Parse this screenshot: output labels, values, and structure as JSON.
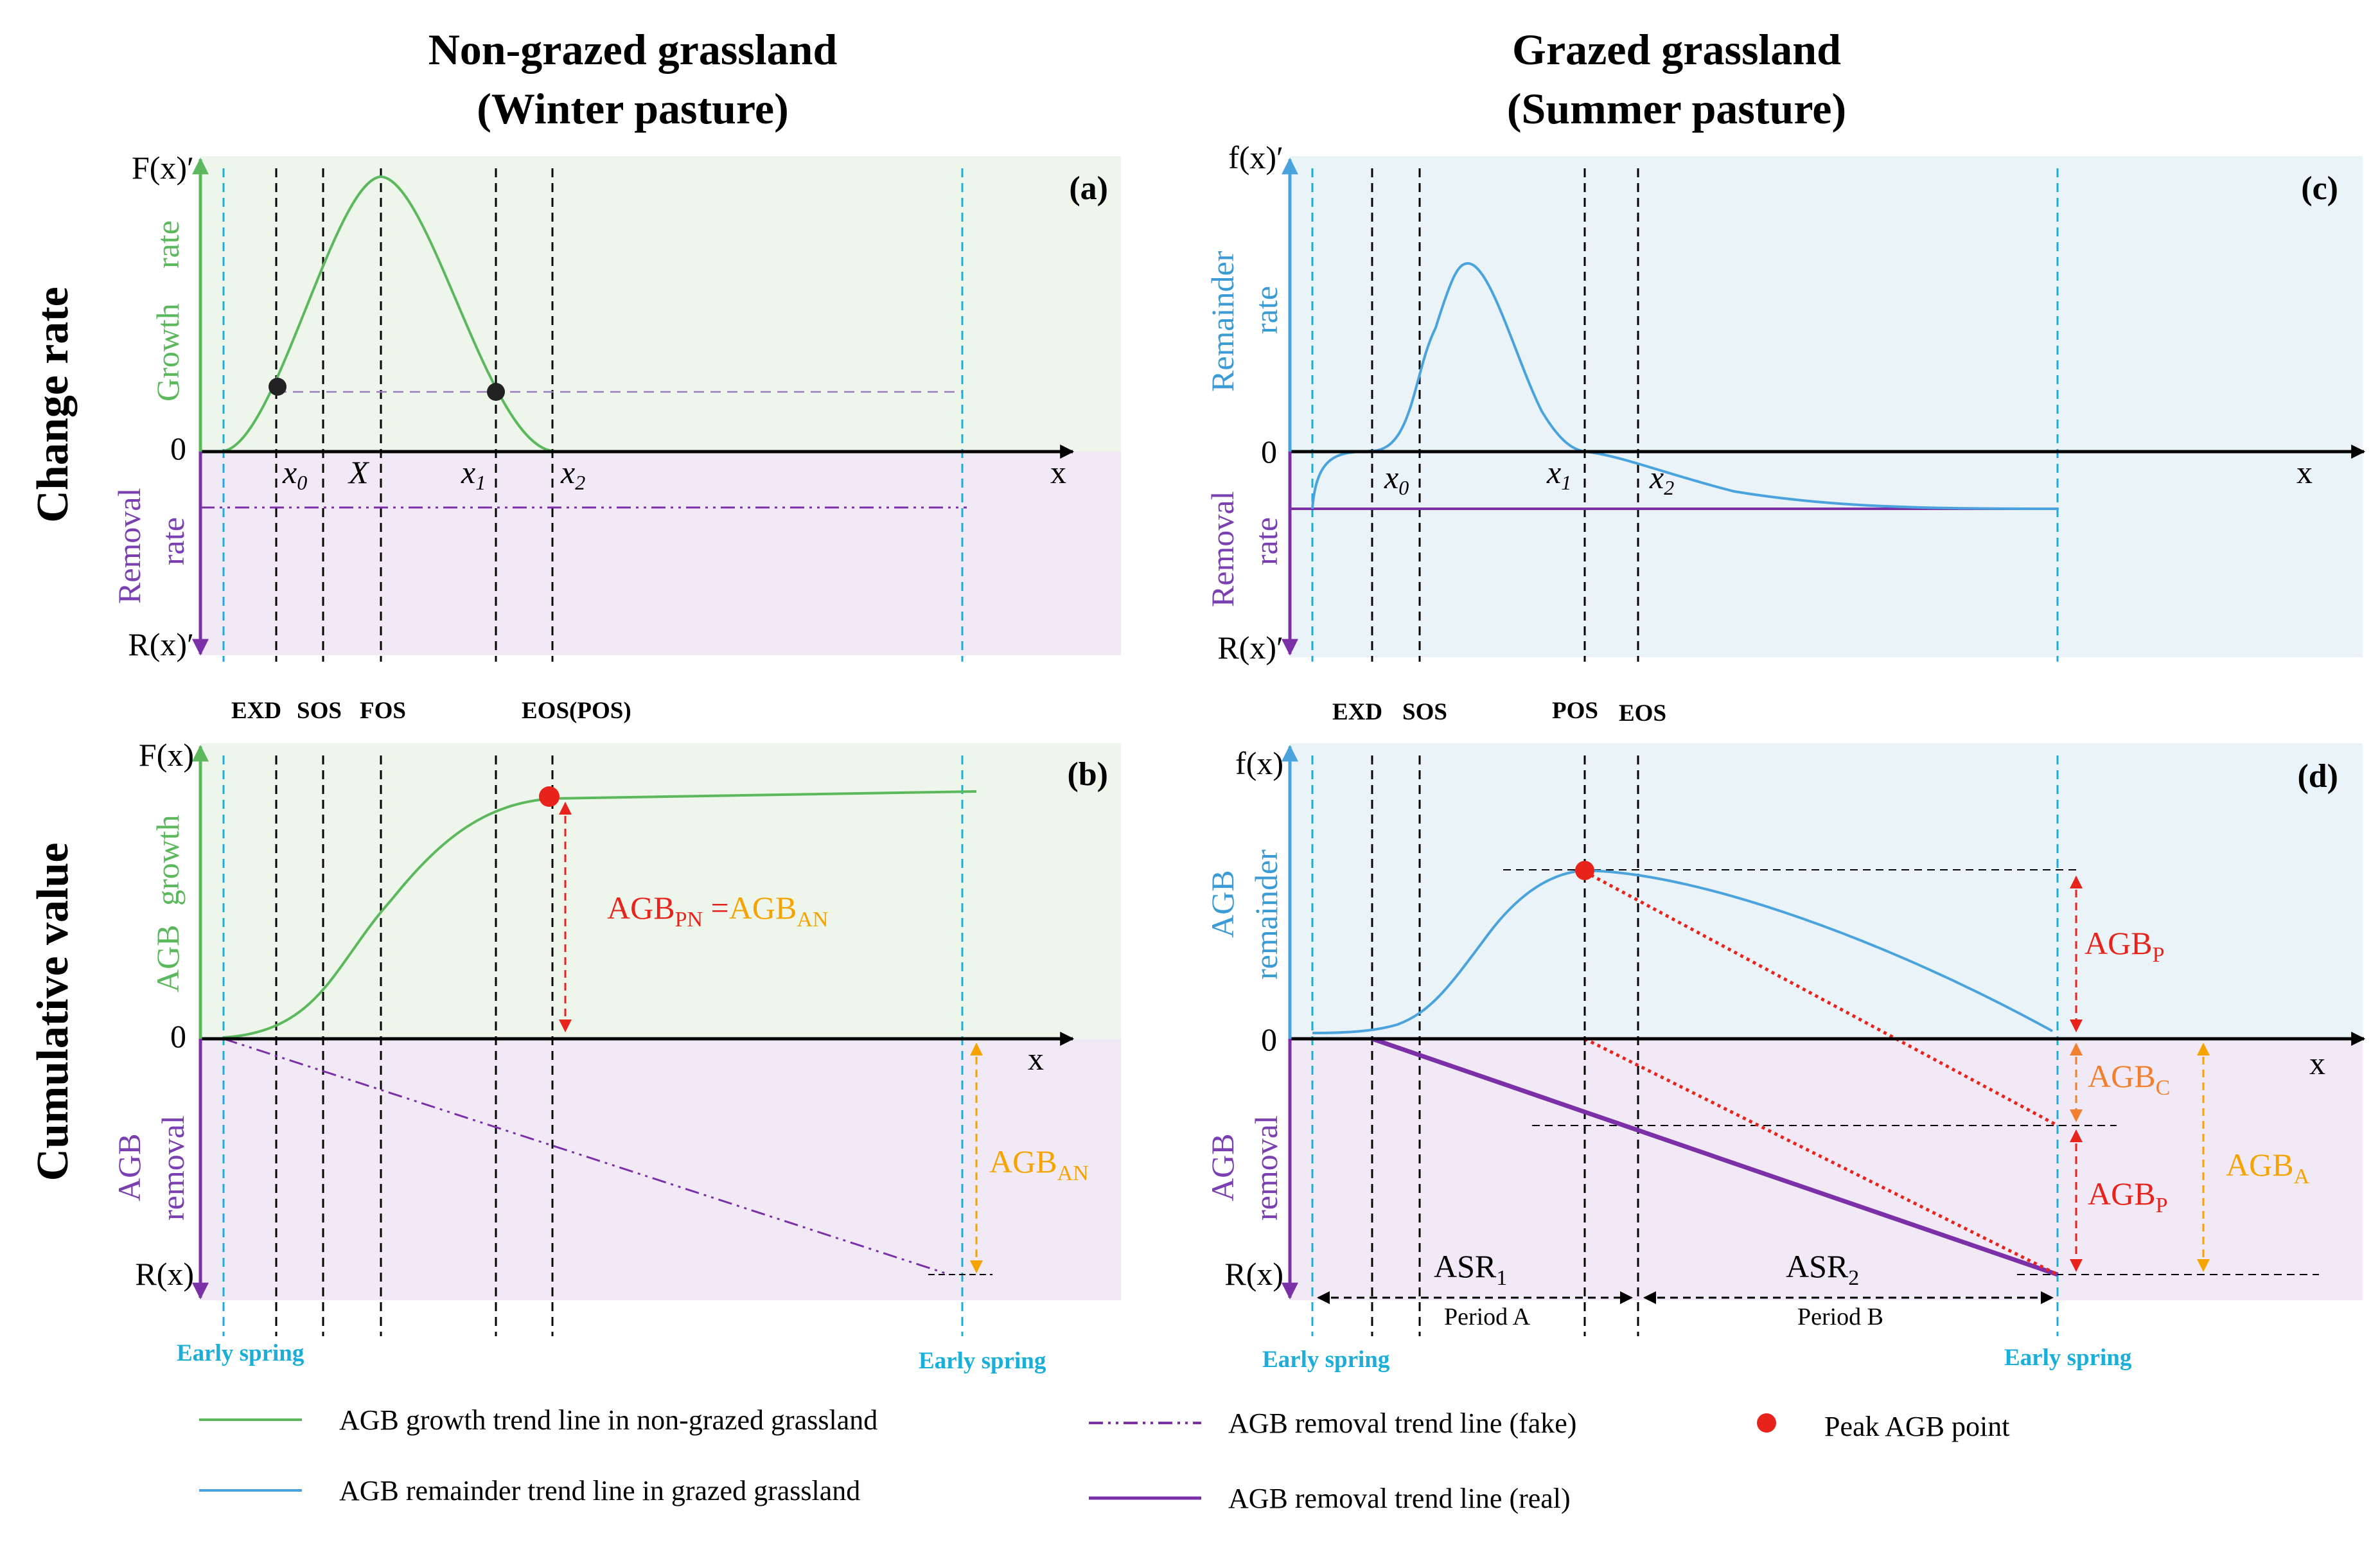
{
  "colors": {
    "green": "#5cb85c",
    "blue": "#4aa3dc",
    "purple": "#7b30a8",
    "red": "#e8231c",
    "orange": "#f5a300",
    "cyan": "#1aaed8",
    "green_bg": "#eef6ec",
    "purple_bg": "#f1eaf6",
    "blue_bg": "#eaf3f8"
  },
  "titles": {
    "left_line1": "Non-grazed grassland",
    "left_line2": "(Winter pasture)",
    "right_line1": "Grazed grassland",
    "right_line2": "(Summer pasture)"
  },
  "row_labels": {
    "top": "Change rate",
    "bottom": "Cumulative value"
  },
  "panel_a": {
    "label": "(a)",
    "y_top": "F(x)′",
    "y_bottom": "R(x)′",
    "zero": "0",
    "x_axis": "x",
    "growth_label_1": "Growth",
    "growth_label_2": "rate",
    "removal_label_1": "Removal",
    "removal_label_2": "rate",
    "ticks": [
      "x",
      "0",
      "X",
      "x",
      "1",
      "x",
      "2"
    ],
    "events": [
      "EXD",
      "SOS",
      "FOS",
      "EOS(POS)"
    ]
  },
  "panel_b": {
    "label": "(b)",
    "y_top": "F(x)",
    "y_bottom": "R(x)",
    "zero": "0",
    "x_axis": "x",
    "growth_label_1": "AGB",
    "growth_label_2": "growth",
    "removal_label_1": "AGB",
    "removal_label_2": "removal",
    "agb_base": "AGB",
    "agb_pn_sub": "PN",
    "equals": " =",
    "agb_an_sub": "AN",
    "agb_an_right_base": "AGB",
    "agb_an_right_sub": "AN",
    "spring_left": "Early spring",
    "spring_right": "Early spring"
  },
  "panel_c": {
    "label": "(c)",
    "y_top": "f(x)′",
    "y_bottom": "R(x)′",
    "zero": "0",
    "x_axis": "x",
    "remainder_label_1": "Remainder",
    "remainder_label_2": "rate",
    "removal_label_1": "Removal",
    "removal_label_2": "rate",
    "events": [
      "EXD",
      "SOS",
      "POS",
      "EOS"
    ]
  },
  "panel_d": {
    "label": "(d)",
    "y_top": "f(x)",
    "y_bottom": "R(x)",
    "zero": "0",
    "x_axis": "x",
    "remainder_label_1": "AGB",
    "remainder_label_2": "remainder",
    "removal_label_1": "AGB",
    "removal_label_2": "removal",
    "agb": "AGB",
    "sub_p": "P",
    "sub_c": "C",
    "sub_a": "A",
    "asr": "ASR",
    "asr1_sub": "1",
    "asr2_sub": "2",
    "period_a": "Period A",
    "period_b": "Period B",
    "spring_left": "Early spring",
    "spring_right": "Early spring"
  },
  "legend": [
    {
      "label": "AGB growth trend line in non-grazed grassland",
      "style": "green-solid"
    },
    {
      "label": "AGB remainder trend line in grazed grassland",
      "style": "blue-solid"
    },
    {
      "label": "AGB removal trend line (fake)",
      "style": "purple-dashdot"
    },
    {
      "label": "AGB removal trend line (real)",
      "style": "purple-solid"
    },
    {
      "label": "Peak AGB point",
      "style": "red-dot"
    }
  ]
}
